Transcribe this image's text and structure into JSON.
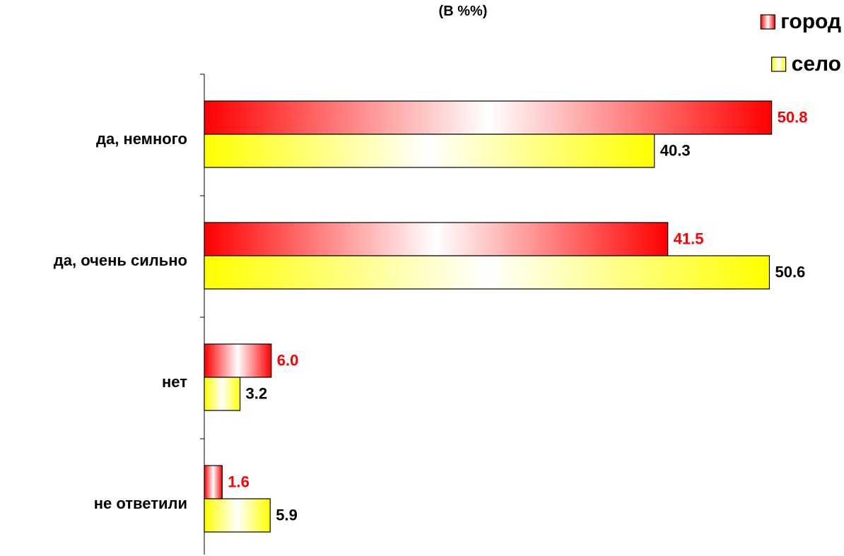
{
  "chart_data": {
    "type": "bar",
    "orientation": "horizontal",
    "title": "(В %%)",
    "categories": [
      "да, немного",
      "да, очень сильно",
      "нет",
      "не ответили"
    ],
    "series": [
      {
        "name": "город",
        "values": [
          50.8,
          41.5,
          6.0,
          1.6
        ],
        "color": "#ff0000",
        "label_color": "#ff0000"
      },
      {
        "name": "село",
        "values": [
          40.3,
          50.6,
          3.2,
          5.9
        ],
        "color": "#ffff00",
        "label_color": "#000000"
      }
    ],
    "xlim": [
      0,
      57
    ],
    "grid": false,
    "legend_position": "top-right"
  }
}
